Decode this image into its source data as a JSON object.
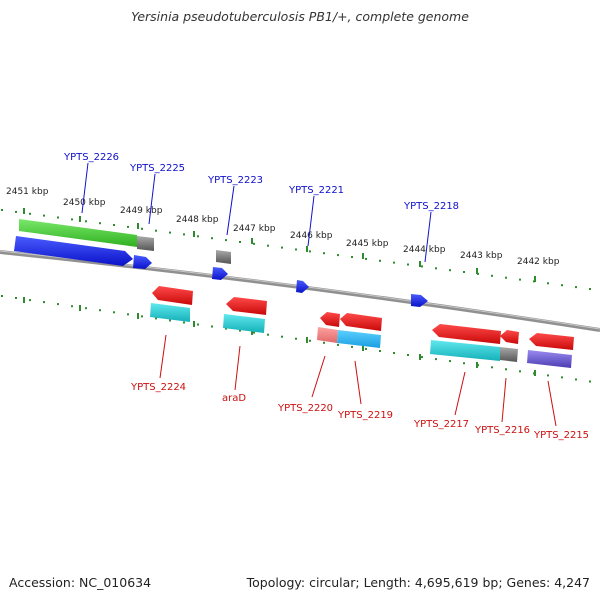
{
  "title": "Yersinia pseudotuberculosis PB1/+, complete genome",
  "footer": {
    "accession": "Accession: NC_010634",
    "summary": "Topology: circular; Length: 4,695,619 bp; Genes: 4,247"
  },
  "kbp_labels": [
    "2451 kbp",
    "2450 kbp",
    "2449 kbp",
    "2448 kbp",
    "2447 kbp",
    "2446 kbp",
    "2445 kbp",
    "2444 kbp",
    "2443 kbp",
    "2442 kbp"
  ],
  "top_genes": [
    "YPTS_2226",
    "YPTS_2225",
    "YPTS_2223",
    "YPTS_2221",
    "YPTS_2218"
  ],
  "bottom_genes": [
    "YPTS_2224",
    "araD",
    "YPTS_2220",
    "YPTS_2219",
    "YPTS_2217",
    "YPTS_2216",
    "YPTS_2215"
  ],
  "colors": {
    "forward_strand": "#1020e8",
    "reverse_strand": "#ee1010",
    "annotation_green": "#44cc33",
    "annotation_cyan": "#22c8d0",
    "annotation_gray": "#777777",
    "annotation_purple": "#6a5acd",
    "tick_green": "#2e8b2e",
    "backbone": "#888888"
  }
}
